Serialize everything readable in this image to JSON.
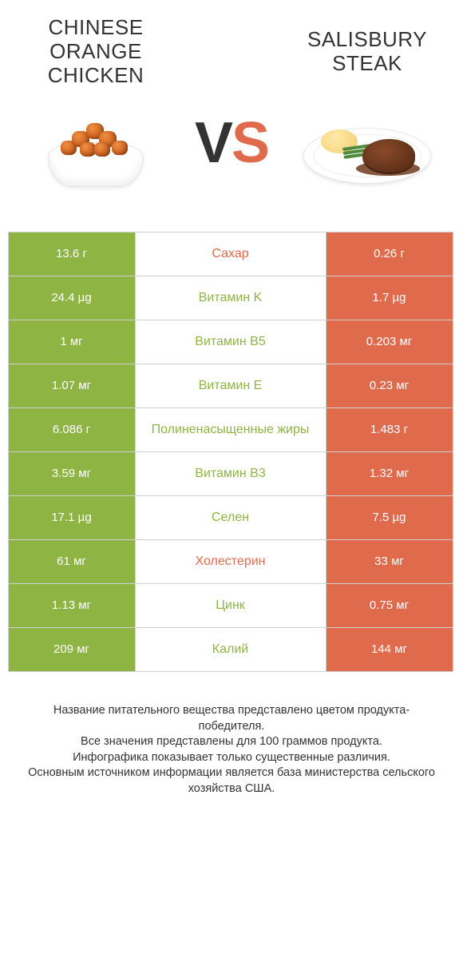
{
  "colors": {
    "left_bar": "#8eb544",
    "right_bar": "#e06a4c",
    "label_left_win": "#8eb544",
    "label_right_win": "#e06a4c",
    "vs_v": "#333333",
    "vs_s": "#e06a4c"
  },
  "left": {
    "title": "CHINESE ORANGE CHICKEN"
  },
  "right": {
    "title": "SALISBURY STEAK"
  },
  "vs": {
    "v": "V",
    "s": "S"
  },
  "rows": [
    {
      "label": "Сахар",
      "left": "13.6 г",
      "right": "0.26 г",
      "winner": "right"
    },
    {
      "label": "Витамин K",
      "left": "24.4 µg",
      "right": "1.7 µg",
      "winner": "left"
    },
    {
      "label": "Витамин B5",
      "left": "1 мг",
      "right": "0.203 мг",
      "winner": "left"
    },
    {
      "label": "Витамин E",
      "left": "1.07 мг",
      "right": "0.23 мг",
      "winner": "left"
    },
    {
      "label": "Полиненасыщенные жиры",
      "left": "6.086 г",
      "right": "1.483 г",
      "winner": "left"
    },
    {
      "label": "Витамин B3",
      "left": "3.59 мг",
      "right": "1.32 мг",
      "winner": "left"
    },
    {
      "label": "Селен",
      "left": "17.1 µg",
      "right": "7.5 µg",
      "winner": "left"
    },
    {
      "label": "Холестерин",
      "left": "61 мг",
      "right": "33 мг",
      "winner": "right"
    },
    {
      "label": "Цинк",
      "left": "1.13 мг",
      "right": "0.75 мг",
      "winner": "left"
    },
    {
      "label": "Калий",
      "left": "209 мг",
      "right": "144 мг",
      "winner": "left"
    }
  ],
  "footer": {
    "l1": "Название питательного вещества представлено цветом продукта-победителя.",
    "l2": "Все значения представлены для 100 граммов продукта.",
    "l3": "Инфографика показывает только существенные различия.",
    "l4": "Основным источником информации является база министерства сельского хозяйства США."
  }
}
